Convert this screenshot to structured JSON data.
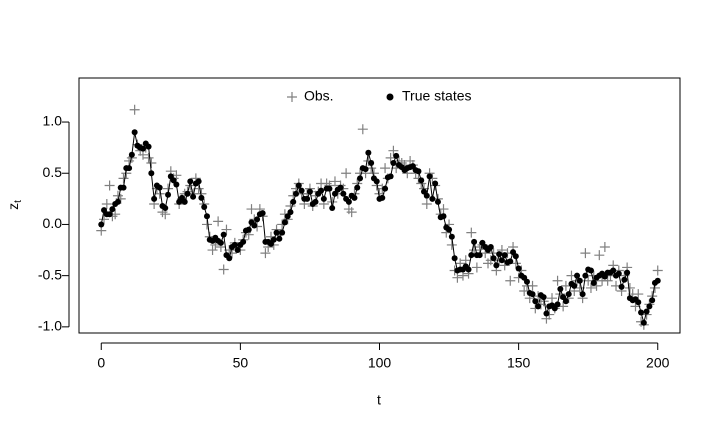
{
  "chart_data": {
    "type": "line",
    "xlabel": "t",
    "ylabel": "z",
    "ylabel_subscript": "t",
    "xlim": [
      -8,
      208
    ],
    "ylim": [
      -1.06,
      1.43
    ],
    "xticks": [
      0,
      50,
      100,
      150,
      200
    ],
    "yticks": [
      {
        "value": -1,
        "label": "-1.0"
      },
      -0.5,
      {
        "value": 0,
        "label": "0.0"
      },
      0.5,
      {
        "value": 1,
        "label": "1.0"
      }
    ],
    "legend": "top",
    "x": [
      0,
      1,
      2,
      3,
      4,
      5,
      6,
      7,
      8,
      9,
      10,
      11,
      12,
      13,
      14,
      15,
      16,
      17,
      18,
      19,
      20,
      21,
      22,
      23,
      24,
      25,
      26,
      27,
      28,
      29,
      30,
      31,
      32,
      33,
      34,
      35,
      36,
      37,
      38,
      39,
      40,
      41,
      42,
      43,
      44,
      45,
      46,
      47,
      48,
      49,
      50,
      51,
      52,
      53,
      54,
      55,
      56,
      57,
      58,
      59,
      60,
      61,
      62,
      63,
      64,
      65,
      66,
      67,
      68,
      69,
      70,
      71,
      72,
      73,
      74,
      75,
      76,
      77,
      78,
      79,
      80,
      81,
      82,
      83,
      84,
      85,
      86,
      87,
      88,
      89,
      90,
      91,
      92,
      93,
      94,
      95,
      96,
      97,
      98,
      99,
      100,
      101,
      102,
      103,
      104,
      105,
      106,
      107,
      108,
      109,
      110,
      111,
      112,
      113,
      114,
      115,
      116,
      117,
      118,
      119,
      120,
      121,
      122,
      123,
      124,
      125,
      126,
      127,
      128,
      129,
      130,
      131,
      132,
      133,
      134,
      135,
      136,
      137,
      138,
      139,
      140,
      141,
      142,
      143,
      144,
      145,
      146,
      147,
      148,
      149,
      150,
      151,
      152,
      153,
      154,
      155,
      156,
      157,
      158,
      159,
      160,
      161,
      162,
      163,
      164,
      165,
      166,
      167,
      168,
      169,
      170,
      171,
      172,
      173,
      174,
      175,
      176,
      177,
      178,
      179,
      180,
      181,
      182,
      183,
      184,
      185,
      186,
      187,
      188,
      189,
      190,
      191,
      192,
      193,
      194,
      195,
      196,
      197,
      198,
      199,
      200
    ],
    "series": [
      {
        "name": "Obs.",
        "color": "#808080",
        "marker": "plus",
        "values": [
          -0.06,
          0.05,
          0.2,
          0.38,
          0.08,
          0.1,
          0.28,
          0.25,
          0.45,
          0.5,
          0.62,
          0.65,
          1.12,
          0.78,
          0.72,
          0.68,
          0.75,
          0.65,
          0.6,
          0.2,
          0.35,
          0.3,
          0.12,
          0.1,
          0.35,
          0.52,
          0.45,
          0.48,
          0.2,
          0.25,
          0.3,
          0.32,
          0.38,
          0.3,
          0.45,
          0.35,
          0.3,
          0.2,
          0.0,
          -0.12,
          -0.25,
          -0.2,
          0.03,
          -0.22,
          -0.44,
          -0.05,
          -0.25,
          -0.28,
          -0.18,
          -0.22,
          -0.25,
          -0.15,
          -0.08,
          -0.1,
          0.15,
          0.05,
          -0.02,
          0.15,
          0.08,
          -0.28,
          -0.22,
          -0.12,
          -0.2,
          -0.05,
          -0.1,
          0.0,
          0.1,
          0.05,
          0.18,
          0.28,
          0.35,
          0.4,
          0.3,
          0.2,
          0.3,
          0.35,
          0.18,
          0.28,
          0.32,
          0.4,
          0.2,
          0.4,
          0.38,
          0.22,
          0.42,
          0.3,
          0.38,
          0.35,
          0.5,
          0.15,
          0.12,
          0.3,
          0.4,
          0.5,
          0.93,
          0.5,
          0.62,
          0.55,
          0.5,
          0.38,
          0.3,
          0.35,
          0.55,
          0.45,
          0.65,
          0.72,
          0.55,
          0.62,
          0.6,
          0.58,
          0.5,
          0.62,
          0.58,
          0.5,
          0.45,
          0.4,
          0.35,
          0.2,
          0.5,
          0.45,
          0.38,
          0.25,
          0.1,
          0.15,
          -0.08,
          0.0,
          -0.2,
          -0.45,
          -0.52,
          -0.38,
          -0.5,
          -0.35,
          -0.48,
          -0.08,
          -0.25,
          -0.42,
          -0.22,
          -0.2,
          -0.28,
          -0.38,
          -0.35,
          -0.28,
          -0.45,
          -0.35,
          -0.25,
          -0.4,
          -0.28,
          -0.55,
          -0.22,
          -0.38,
          -0.52,
          -0.45,
          -0.65,
          -0.6,
          -0.72,
          -0.6,
          -0.82,
          -0.7,
          -0.78,
          -0.75,
          -0.92,
          -0.88,
          -0.72,
          -0.82,
          -0.55,
          -0.68,
          -0.8,
          -0.6,
          -0.72,
          -0.5,
          -0.65,
          -0.55,
          -0.62,
          -0.72,
          -0.28,
          -0.55,
          -0.62,
          -0.5,
          -0.6,
          -0.3,
          -0.55,
          -0.22,
          -0.55,
          -0.5,
          -0.4,
          -0.6,
          -0.45,
          -0.65,
          -0.5,
          -0.42,
          -0.62,
          -0.68,
          -0.8,
          -0.68,
          -0.95,
          -0.98,
          -0.88,
          -0.78,
          -0.7,
          -0.62,
          -0.45
        ]
      },
      {
        "name": "True states",
        "color": "#000000",
        "marker": "dot-line",
        "values": [
          0.0,
          0.14,
          0.1,
          0.1,
          0.15,
          0.2,
          0.22,
          0.36,
          0.36,
          0.55,
          0.55,
          0.68,
          0.9,
          0.77,
          0.75,
          0.74,
          0.79,
          0.76,
          0.5,
          0.25,
          0.38,
          0.36,
          0.18,
          0.16,
          0.29,
          0.47,
          0.43,
          0.39,
          0.22,
          0.26,
          0.22,
          0.3,
          0.42,
          0.27,
          0.4,
          0.42,
          0.26,
          0.17,
          0.08,
          -0.15,
          -0.16,
          -0.13,
          -0.16,
          -0.18,
          -0.1,
          -0.3,
          -0.33,
          -0.22,
          -0.2,
          -0.25,
          -0.2,
          -0.17,
          -0.06,
          -0.05,
          0.02,
          -0.01,
          0.05,
          0.1,
          0.11,
          -0.17,
          -0.17,
          -0.19,
          -0.15,
          -0.08,
          -0.14,
          -0.08,
          0.02,
          0.08,
          0.12,
          0.22,
          0.3,
          0.38,
          0.33,
          0.25,
          0.25,
          0.32,
          0.2,
          0.22,
          0.3,
          0.33,
          0.25,
          0.35,
          0.35,
          0.16,
          0.3,
          0.34,
          0.36,
          0.3,
          0.25,
          0.22,
          0.28,
          0.26,
          0.36,
          0.45,
          0.55,
          0.54,
          0.7,
          0.6,
          0.45,
          0.42,
          0.25,
          0.26,
          0.35,
          0.46,
          0.47,
          0.6,
          0.67,
          0.58,
          0.56,
          0.53,
          0.55,
          0.56,
          0.57,
          0.53,
          0.52,
          0.43,
          0.32,
          0.28,
          0.47,
          0.25,
          0.4,
          0.22,
          0.07,
          0.08,
          -0.03,
          -0.05,
          -0.12,
          -0.33,
          -0.45,
          -0.44,
          -0.44,
          -0.41,
          -0.44,
          -0.3,
          -0.17,
          -0.3,
          -0.3,
          -0.18,
          -0.22,
          -0.25,
          -0.22,
          -0.33,
          -0.4,
          -0.29,
          -0.35,
          -0.3,
          -0.37,
          -0.36,
          -0.27,
          -0.31,
          -0.43,
          -0.5,
          -0.52,
          -0.56,
          -0.67,
          -0.68,
          -0.75,
          -0.8,
          -0.69,
          -0.71,
          -0.87,
          -0.8,
          -0.79,
          -0.82,
          -0.78,
          -0.63,
          -0.71,
          -0.75,
          -0.68,
          -0.58,
          -0.6,
          -0.5,
          -0.55,
          -0.68,
          -0.5,
          -0.44,
          -0.45,
          -0.57,
          -0.52,
          -0.5,
          -0.48,
          -0.51,
          -0.47,
          -0.47,
          -0.45,
          -0.5,
          -0.48,
          -0.61,
          -0.54,
          -0.47,
          -0.72,
          -0.74,
          -0.73,
          -0.76,
          -0.86,
          -0.96,
          -0.85,
          -0.8,
          -0.74,
          -0.57,
          -0.55
        ]
      }
    ]
  }
}
